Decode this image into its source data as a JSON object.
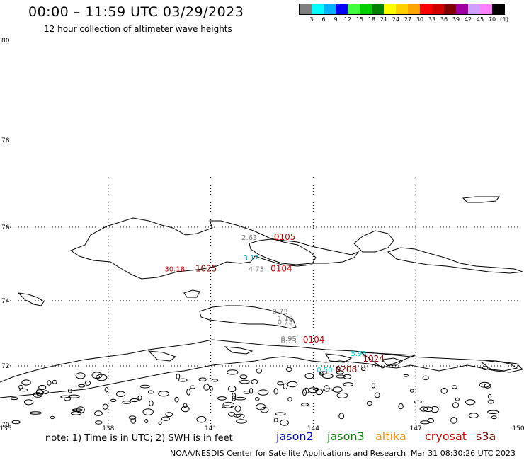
{
  "header": {
    "title": "00:00 – 11:59 UTC 03/29/2023",
    "subtitle": "12 hour collection of altimeter wave heights"
  },
  "scale": {
    "colors": [
      "#7f7f7f",
      "#00ffff",
      "#00b2ff",
      "#0000ff",
      "#3fff3f",
      "#00d000",
      "#008000",
      "#ffff00",
      "#ffd000",
      "#ffa500",
      "#ff0000",
      "#d00000",
      "#800000",
      "#a000a0",
      "#d0a0ff",
      "#ff80ff",
      "#000000"
    ],
    "labels": [
      "3",
      "6",
      "9",
      "12",
      "15",
      "18",
      "21",
      "24",
      "27",
      "30",
      "33",
      "36",
      "39",
      "42",
      "45",
      "70",
      "(ft)"
    ]
  },
  "axes": {
    "lat_labels": [
      "80",
      "78",
      "76",
      "74",
      "72",
      "70"
    ],
    "lon_labels": [
      "135",
      "138",
      "141",
      "144",
      "147",
      "150"
    ]
  },
  "observations": [
    {
      "text": "2.63",
      "color": "#808080",
      "lon": 141.9,
      "lat": 75.65
    },
    {
      "text": "0105",
      "color": "#d00000",
      "lon": 142.85,
      "lat": 75.65
    },
    {
      "text": "3.12",
      "color": "#00b2d0",
      "lon": 141.95,
      "lat": 75.1
    },
    {
      "text": "4.73",
      "color": "#808080",
      "lon": 142.1,
      "lat": 74.8
    },
    {
      "text": "0104",
      "color": "#d00000",
      "lon": 142.75,
      "lat": 74.8
    },
    {
      "text": "30.18",
      "color": "#d00000",
      "lon": 139.65,
      "lat": 74.8
    },
    {
      "text": "1025",
      "color": "#800000",
      "lon": 140.55,
      "lat": 74.8
    },
    {
      "text": "0.73",
      "color": "#808080",
      "lon": 142.8,
      "lat": 73.6
    },
    {
      "text": "1.10",
      "color": "#808080",
      "lon": 142.95,
      "lat": 73.38
    },
    {
      "text": "0.73",
      "color": "#808080",
      "lon": 142.95,
      "lat": 73.27
    },
    {
      "text": "0.95",
      "color": "#808080",
      "lon": 143.05,
      "lat": 72.76
    },
    {
      "text": "0.73",
      "color": "#808080",
      "lon": 143.05,
      "lat": 72.7
    },
    {
      "text": "0104",
      "color": "#d00000",
      "lon": 143.7,
      "lat": 72.72
    },
    {
      "text": "5.95",
      "color": "#00d0d0",
      "lon": 145.1,
      "lat": 72.3
    },
    {
      "text": "1024",
      "color": "#800000",
      "lon": 145.45,
      "lat": 72.13
    },
    {
      "text": "0.50",
      "color": "#00d0d0",
      "lon": 144.1,
      "lat": 71.78
    },
    {
      "text": "0208",
      "color": "#800000",
      "lon": 144.65,
      "lat": 71.78
    }
  ],
  "footer": {
    "note": "note:  1) Time is in UTC; 2) SWH is in feet",
    "sats": [
      {
        "name": "jason2",
        "color": "#0000c0"
      },
      {
        "name": "jason3",
        "color": "#008000"
      },
      {
        "name": "altika",
        "color": "#ff9000"
      },
      {
        "name": "cryosat",
        "color": "#d00000"
      },
      {
        "name": "s3a",
        "color": "#800000"
      }
    ],
    "credit": "NOAA/NESDIS Center for Satellite Applications and Research",
    "timestamp": "Mar 31 08:30:26 UTC 2023"
  }
}
